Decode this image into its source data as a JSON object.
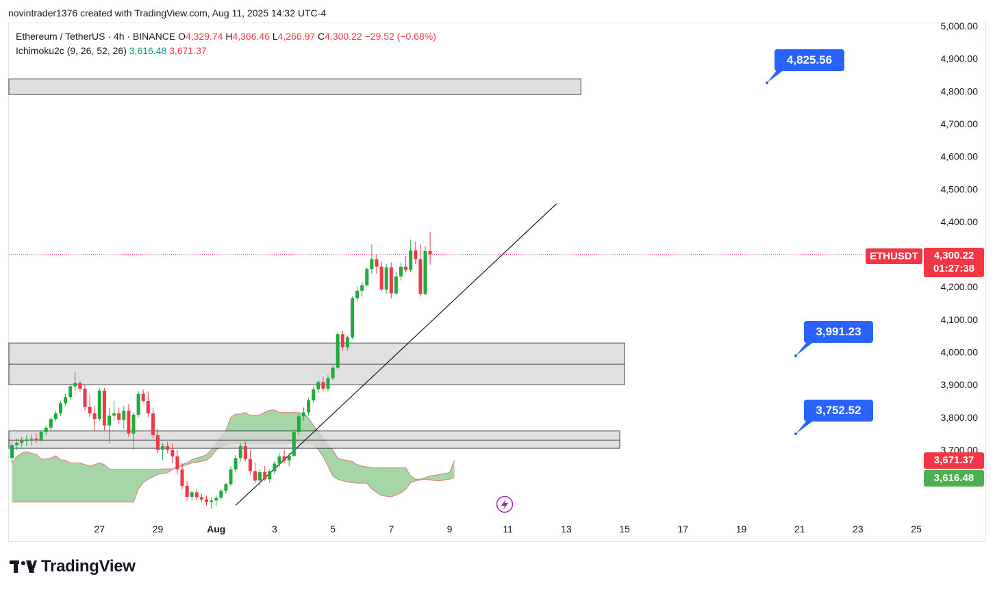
{
  "caption": "novintrader1376 created with TradingView.com, Aug 11, 2025 14:32 UTC-4",
  "legend": {
    "symbol": "Ethereum / TetherUS · 4h · BINANCE",
    "o_key": "O",
    "o_val": "4,329.74",
    "h_key": "H",
    "h_val": "4,366.46",
    "l_key": "L",
    "l_val": "4,266.97",
    "c_key": "C",
    "c_val": "4,300.22",
    "change": "−29.52 (−0.68%)",
    "indicator": "Ichimoku2c (9, 26, 52, 26)",
    "ind_val1": "3,616.48",
    "ind_val2": "3,671.37"
  },
  "price_axis": {
    "ticks": [
      "5,000.00",
      "4,900.00",
      "4,800.00",
      "4,700.00",
      "4,600.00",
      "4,500.00",
      "4,400.00",
      "4,300.00",
      "4,200.00",
      "4,100.00",
      "4,000.00",
      "3,900.00",
      "3,800.00",
      "3,700.00"
    ],
    "tick_values": [
      5000,
      4900,
      4800,
      4700,
      4600,
      4500,
      4400,
      4300,
      4200,
      4100,
      4000,
      3900,
      3800,
      3700
    ]
  },
  "time_axis": {
    "labels": [
      "27",
      "29",
      "Aug",
      "3",
      "5",
      "7",
      "9",
      "11",
      "13",
      "15",
      "17",
      "19",
      "21",
      "23",
      "25"
    ],
    "bar_index": [
      18,
      30,
      42,
      54,
      66,
      78,
      90,
      102,
      114,
      126,
      138,
      150,
      162,
      174,
      186
    ]
  },
  "tags": {
    "symbol": "ETHUSDT",
    "last_price": "4,300.22",
    "countdown": "01:27:38",
    "ichimoku_a": "3,671.37",
    "ichimoku_b": "3,616.48"
  },
  "callouts": {
    "top": "4,825.56",
    "mid": "3,991.23",
    "low": "3,752.52"
  },
  "colors": {
    "up": "#089981",
    "down": "#f23645",
    "bull_candle": "#22ab3c",
    "bear_candle": "#f23645",
    "cloud": "#9bd19f",
    "cloud_edge": "#e57373",
    "zone_fill": "#d6d6d6",
    "callout": "#2962ff",
    "tag_red": "#f23645",
    "tag_green": "#4caf50"
  },
  "brand": "TradingView",
  "chart_data": {
    "type": "candlestick",
    "timeframe": "4h",
    "ylim": [
      3530,
      5020
    ],
    "candles": [
      [
        3675,
        3725,
        3660,
        3715
      ],
      [
        3715,
        3735,
        3700,
        3722
      ],
      [
        3722,
        3740,
        3710,
        3728
      ],
      [
        3728,
        3745,
        3712,
        3732
      ],
      [
        3732,
        3748,
        3715,
        3735
      ],
      [
        3735,
        3750,
        3722,
        3730
      ],
      [
        3730,
        3760,
        3725,
        3755
      ],
      [
        3755,
        3775,
        3745,
        3768
      ],
      [
        3768,
        3800,
        3760,
        3795
      ],
      [
        3795,
        3820,
        3788,
        3812
      ],
      [
        3812,
        3850,
        3805,
        3843
      ],
      [
        3843,
        3872,
        3835,
        3862
      ],
      [
        3862,
        3900,
        3855,
        3895
      ],
      [
        3895,
        3940,
        3880,
        3905
      ],
      [
        3905,
        3912,
        3880,
        3888
      ],
      [
        3888,
        3900,
        3820,
        3832
      ],
      [
        3832,
        3870,
        3800,
        3812
      ],
      [
        3812,
        3835,
        3760,
        3795
      ],
      [
        3795,
        3890,
        3788,
        3882
      ],
      [
        3882,
        3890,
        3760,
        3775
      ],
      [
        3775,
        3830,
        3722,
        3805
      ],
      [
        3805,
        3850,
        3790,
        3812
      ],
      [
        3812,
        3830,
        3780,
        3792
      ],
      [
        3792,
        3835,
        3765,
        3820
      ],
      [
        3820,
        3840,
        3740,
        3750
      ],
      [
        3750,
        3815,
        3700,
        3808
      ],
      [
        3808,
        3880,
        3800,
        3872
      ],
      [
        3872,
        3885,
        3845,
        3850
      ],
      [
        3850,
        3880,
        3800,
        3812
      ],
      [
        3812,
        3830,
        3735,
        3745
      ],
      [
        3745,
        3765,
        3690,
        3700
      ],
      [
        3700,
        3720,
        3670,
        3712
      ],
      [
        3712,
        3725,
        3690,
        3700
      ],
      [
        3700,
        3720,
        3660,
        3680
      ],
      [
        3680,
        3700,
        3625,
        3640
      ],
      [
        3640,
        3660,
        3580,
        3590
      ],
      [
        3590,
        3605,
        3545,
        3556
      ],
      [
        3556,
        3575,
        3545,
        3570
      ],
      [
        3570,
        3580,
        3545,
        3555
      ],
      [
        3555,
        3565,
        3540,
        3548
      ],
      [
        3548,
        3560,
        3530,
        3540
      ],
      [
        3540,
        3555,
        3520,
        3545
      ],
      [
        3545,
        3560,
        3528,
        3553
      ],
      [
        3553,
        3580,
        3548,
        3575
      ],
      [
        3575,
        3600,
        3565,
        3595
      ],
      [
        3595,
        3650,
        3590,
        3640
      ],
      [
        3640,
        3685,
        3630,
        3675
      ],
      [
        3675,
        3720,
        3665,
        3712
      ],
      [
        3712,
        3725,
        3665,
        3672
      ],
      [
        3672,
        3700,
        3625,
        3635
      ],
      [
        3635,
        3660,
        3598,
        3606
      ],
      [
        3606,
        3640,
        3590,
        3632
      ],
      [
        3632,
        3650,
        3605,
        3610
      ],
      [
        3610,
        3640,
        3600,
        3635
      ],
      [
        3635,
        3665,
        3625,
        3658
      ],
      [
        3658,
        3690,
        3648,
        3680
      ],
      [
        3680,
        3700,
        3660,
        3668
      ],
      [
        3668,
        3690,
        3650,
        3682
      ],
      [
        3682,
        3762,
        3678,
        3755
      ],
      [
        3755,
        3810,
        3745,
        3803
      ],
      [
        3803,
        3830,
        3790,
        3815
      ],
      [
        3815,
        3860,
        3805,
        3852
      ],
      [
        3852,
        3895,
        3845,
        3886
      ],
      [
        3886,
        3915,
        3875,
        3908
      ],
      [
        3908,
        3925,
        3880,
        3888
      ],
      [
        3888,
        3930,
        3880,
        3920
      ],
      [
        3920,
        3960,
        3915,
        3952
      ],
      [
        3952,
        4060,
        3948,
        4055
      ],
      [
        4055,
        4065,
        4005,
        4015
      ],
      [
        4015,
        4050,
        4005,
        4045
      ],
      [
        4045,
        4170,
        4040,
        4165
      ],
      [
        4165,
        4200,
        4155,
        4188
      ],
      [
        4188,
        4215,
        4170,
        4205
      ],
      [
        4205,
        4260,
        4200,
        4255
      ],
      [
        4255,
        4330,
        4240,
        4285
      ],
      [
        4285,
        4300,
        4240,
        4262
      ],
      [
        4262,
        4280,
        4185,
        4192
      ],
      [
        4192,
        4270,
        4180,
        4260
      ],
      [
        4260,
        4275,
        4165,
        4180
      ],
      [
        4180,
        4245,
        4175,
        4232
      ],
      [
        4232,
        4275,
        4220,
        4262
      ],
      [
        4262,
        4295,
        4245,
        4252
      ],
      [
        4252,
        4345,
        4245,
        4312
      ],
      [
        4312,
        4340,
        4270,
        4285
      ],
      [
        4285,
        4330,
        4170,
        4178
      ],
      [
        4178,
        4325,
        4175,
        4310
      ],
      [
        4310,
        4368,
        4268,
        4300
      ]
    ],
    "horizontal_zones": [
      {
        "top": 4838,
        "bottom": 4790,
        "end_bar": 117
      },
      {
        "top": 4028,
        "bottom": 3900,
        "divider": 3963,
        "end_bar": 126
      },
      {
        "top": 3758,
        "bottom": 3705,
        "divider": 3730,
        "end_bar": 125
      }
    ],
    "trendline": [
      [
        46,
        3530
      ],
      [
        112,
        4455
      ]
    ],
    "ichimoku_cloud": {
      "start_bar": 0,
      "span_a": [
        3660,
        3680,
        3690,
        3695,
        3690,
        3686,
        3672,
        3672,
        3675,
        3682,
        3670,
        3668,
        3660,
        3660,
        3660,
        3655,
        3650,
        3655,
        3660,
        3655,
        3642,
        3640,
        3640,
        3640,
        3640,
        3640,
        3640,
        3640,
        3640,
        3640,
        3640,
        3642,
        3642,
        3642,
        3645,
        3655,
        3660,
        3670,
        3675,
        3680,
        3685,
        3700,
        3720,
        3740,
        3760,
        3800,
        3810,
        3810,
        3815,
        3805,
        3805,
        3808,
        3815,
        3822,
        3822,
        3815,
        3815,
        3815,
        3815,
        3815,
        3812,
        3798,
        3775,
        3755,
        3735,
        3715,
        3700,
        3675,
        3670,
        3668,
        3664,
        3655,
        3650,
        3648,
        3645,
        3645,
        3645,
        3645,
        3645,
        3645,
        3645,
        3645,
        3620,
        3610,
        3610,
        3615,
        3620,
        3622,
        3625,
        3628,
        3630,
        3668
      ],
      "span_b": [
        3540,
        3540,
        3540,
        3540,
        3540,
        3540,
        3540,
        3540,
        3540,
        3540,
        3540,
        3540,
        3540,
        3540,
        3540,
        3540,
        3540,
        3540,
        3540,
        3540,
        3540,
        3540,
        3540,
        3540,
        3540,
        3540,
        3580,
        3600,
        3610,
        3618,
        3625,
        3628,
        3630,
        3640,
        3650,
        3650,
        3655,
        3660,
        3662,
        3665,
        3668,
        3680,
        3700,
        3710,
        3715,
        3720,
        3720,
        3720,
        3720,
        3720,
        3720,
        3720,
        3720,
        3720,
        3720,
        3720,
        3720,
        3720,
        3720,
        3720,
        3720,
        3720,
        3720,
        3700,
        3680,
        3650,
        3620,
        3610,
        3605,
        3602,
        3600,
        3598,
        3598,
        3598,
        3580,
        3570,
        3560,
        3558,
        3556,
        3562,
        3568,
        3580,
        3600,
        3605,
        3608,
        3610,
        3608,
        3606,
        3605,
        3608,
        3610,
        3615
      ]
    },
    "last_price": 4300.22
  }
}
